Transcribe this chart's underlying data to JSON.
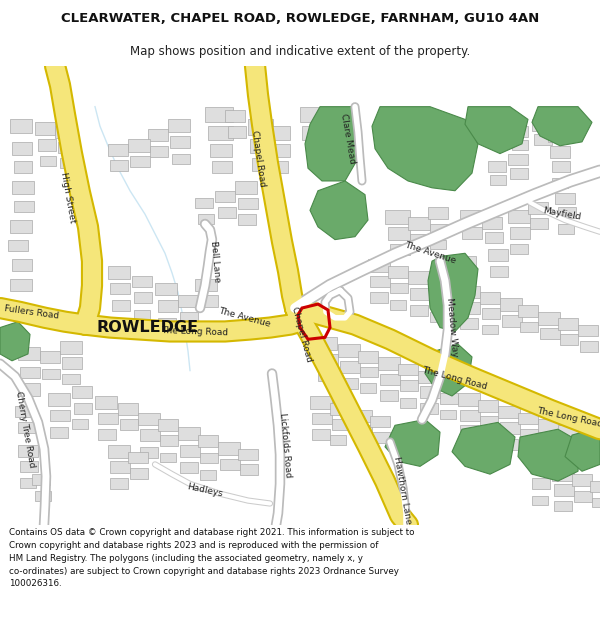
{
  "title": "CLEARWATER, CHAPEL ROAD, ROWLEDGE, FARNHAM, GU10 4AN",
  "subtitle": "Map shows position and indicative extent of the property.",
  "footer": "Contains OS data © Crown copyright and database right 2021. This information is subject to Crown copyright and database rights 2023 and is reproduced with the permission of HM Land Registry. The polygons (including the associated geometry, namely x, y co-ordinates) are subject to Crown copyright and database rights 2023 Ordnance Survey 100026316.",
  "bg_color": "#ffffff",
  "map_bg": "#f7f7f7",
  "road_yellow": "#f5e67a",
  "road_yellow_border": "#d4b800",
  "building_color": "#dedede",
  "building_border": "#aaaaaa",
  "green_color": "#6aaa6a",
  "green_dark": "#4a8a4a",
  "red_outline": "#cc0000",
  "stream_color": "#c0e0f0"
}
